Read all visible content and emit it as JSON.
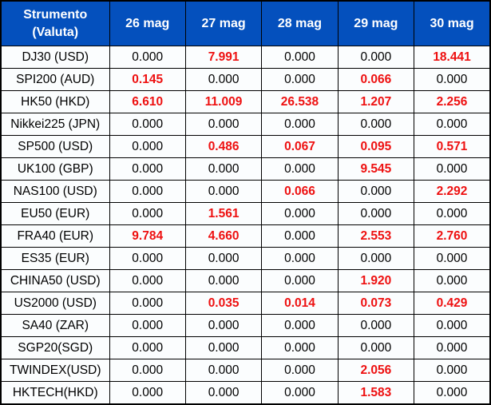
{
  "colors": {
    "header_bg": "#0450bd",
    "header_text": "#ffffff",
    "cell_bg": "#fbfdfe",
    "value_text": "#000000",
    "highlight_text": "#ee1111",
    "border": "#000000"
  },
  "table": {
    "header": {
      "instrument_line1": "Strumento",
      "instrument_line2": "(Valuta)",
      "dates": [
        "26 mag",
        "27 mag",
        "28 mag",
        "29 mag",
        "30 mag"
      ]
    },
    "rows": [
      {
        "instrument": "DJ30 (USD)",
        "values": [
          "0.000",
          "7.991",
          "0.000",
          "0.000",
          "18.441"
        ],
        "red": [
          false,
          true,
          false,
          false,
          true
        ]
      },
      {
        "instrument": "SPI200 (AUD)",
        "values": [
          "0.145",
          "0.000",
          "0.000",
          "0.066",
          "0.000"
        ],
        "red": [
          true,
          false,
          false,
          true,
          false
        ]
      },
      {
        "instrument": "HK50 (HKD)",
        "values": [
          "6.610",
          "11.009",
          "26.538",
          "1.207",
          "2.256"
        ],
        "red": [
          true,
          true,
          true,
          true,
          true
        ]
      },
      {
        "instrument": "Nikkei225 (JPN)",
        "values": [
          "0.000",
          "0.000",
          "0.000",
          "0.000",
          "0.000"
        ],
        "red": [
          false,
          false,
          false,
          false,
          false
        ]
      },
      {
        "instrument": "SP500 (USD)",
        "values": [
          "0.000",
          "0.486",
          "0.067",
          "0.095",
          "0.571"
        ],
        "red": [
          false,
          true,
          true,
          true,
          true
        ]
      },
      {
        "instrument": "UK100 (GBP)",
        "values": [
          "0.000",
          "0.000",
          "0.000",
          "9.545",
          "0.000"
        ],
        "red": [
          false,
          false,
          false,
          true,
          false
        ]
      },
      {
        "instrument": "NAS100 (USD)",
        "values": [
          "0.000",
          "0.000",
          "0.066",
          "0.000",
          "2.292"
        ],
        "red": [
          false,
          false,
          true,
          false,
          true
        ]
      },
      {
        "instrument": "EU50 (EUR)",
        "values": [
          "0.000",
          "1.561",
          "0.000",
          "0.000",
          "0.000"
        ],
        "red": [
          false,
          true,
          false,
          false,
          false
        ]
      },
      {
        "instrument": "FRA40 (EUR)",
        "values": [
          "9.784",
          "4.660",
          "0.000",
          "2.553",
          "2.760"
        ],
        "red": [
          true,
          true,
          false,
          true,
          true
        ]
      },
      {
        "instrument": "ES35 (EUR)",
        "values": [
          "0.000",
          "0.000",
          "0.000",
          "0.000",
          "0.000"
        ],
        "red": [
          false,
          false,
          false,
          false,
          false
        ]
      },
      {
        "instrument": "CHINA50 (USD)",
        "values": [
          "0.000",
          "0.000",
          "0.000",
          "1.920",
          "0.000"
        ],
        "red": [
          false,
          false,
          false,
          true,
          false
        ]
      },
      {
        "instrument": "US2000 (USD)",
        "values": [
          "0.000",
          "0.035",
          "0.014",
          "0.073",
          "0.429"
        ],
        "red": [
          false,
          true,
          true,
          true,
          true
        ]
      },
      {
        "instrument": "SA40 (ZAR)",
        "values": [
          "0.000",
          "0.000",
          "0.000",
          "0.000",
          "0.000"
        ],
        "red": [
          false,
          false,
          false,
          false,
          false
        ]
      },
      {
        "instrument": "SGP20(SGD)",
        "values": [
          "0.000",
          "0.000",
          "0.000",
          "0.000",
          "0.000"
        ],
        "red": [
          false,
          false,
          false,
          false,
          false
        ]
      },
      {
        "instrument": "TWINDEX(USD)",
        "values": [
          "0.000",
          "0.000",
          "0.000",
          "2.056",
          "0.000"
        ],
        "red": [
          false,
          false,
          false,
          true,
          false
        ]
      },
      {
        "instrument": "HKTECH(HKD)",
        "values": [
          "0.000",
          "0.000",
          "0.000",
          "1.583",
          "0.000"
        ],
        "red": [
          false,
          false,
          false,
          true,
          false
        ]
      }
    ]
  }
}
